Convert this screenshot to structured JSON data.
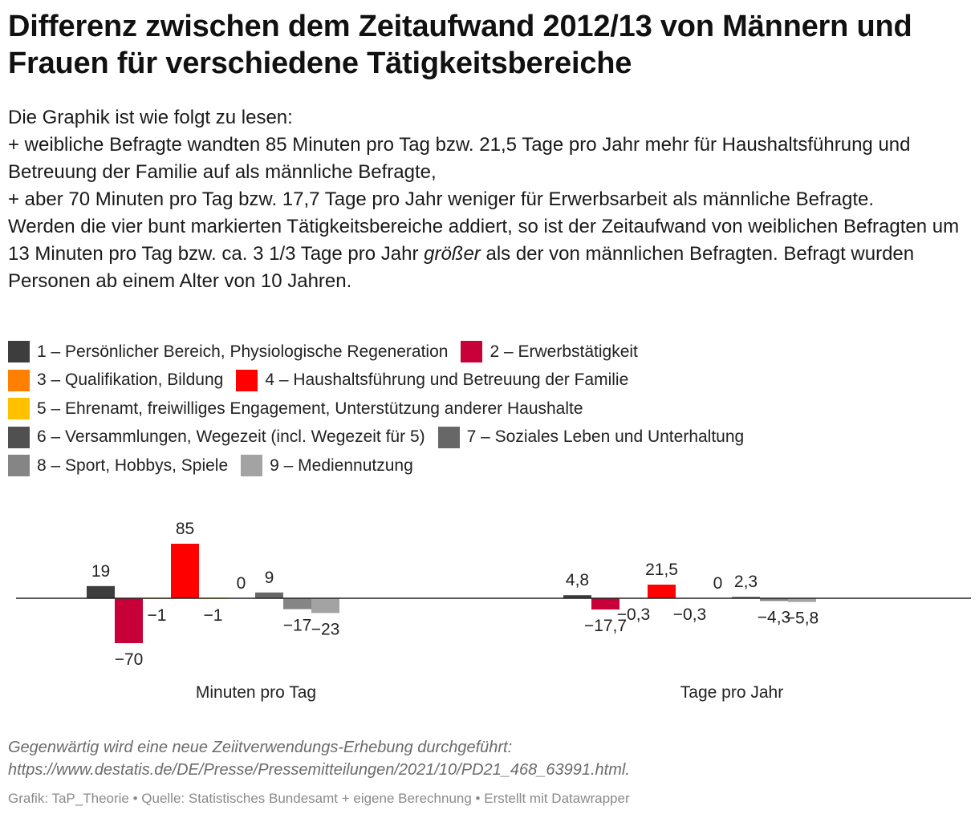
{
  "title": "Differenz zwischen dem Zeitaufwand 2012/13 von Männern und Frauen für verschiedene Tätigkeitsbereiche",
  "description": {
    "line1": "Die Graphik ist wie folgt zu lesen:",
    "line2": "+ weibliche Befragte wandten 85 Minuten pro Tag bzw. 21,5 Tage pro Jahr mehr für Haushaltsführung und Betreuung der Familie auf als männliche Befragte,",
    "line3": "+ aber 70 Minuten pro Tag bzw. 17,7 Tage pro Jahr weniger für Erwerbsarbeit als männliche Befragte.",
    "line4_before": "Werden die vier bunt markierten Tätigkeitsbereiche addiert, so ist der Zeitaufwand von weiblichen Befragten um 13 Minuten pro Tag bzw. ca. 3 1/3 Tage pro Jahr ",
    "line4_emph": "größer",
    "line4_after": " als der von männlichen Befragten. Befragt wurden Personen ab einem Alter von 10 Jahren."
  },
  "legend": [
    {
      "label": "1 – Persönlicher Bereich, Physiologische Regeneration",
      "color": "#3d3d3d"
    },
    {
      "label": "2 – Erwerbstätigkeit",
      "color": "#c70039"
    },
    {
      "label": "3 – Qualifikation, Bildung",
      "color": "#ff8000"
    },
    {
      "label": "4 – Haushaltsführung und Betreuung der Familie",
      "color": "#ff0000"
    },
    {
      "label": "5 – Ehrenamt, freiwilliges Engagement, Unterstützung anderer Haushalte",
      "color": "#ffc000"
    },
    {
      "label": "6 – Versammlungen, Wegezeit (incl. Wegezeit für 5)",
      "color": "#505050"
    },
    {
      "label": "7 – Soziales Leben und Unterhaltung",
      "color": "#676767"
    },
    {
      "label": "8 – Sport, Hobbys, Spiele",
      "color": "#858585"
    },
    {
      "label": "9 – Mediennutzung",
      "color": "#a3a3a3"
    }
  ],
  "chart_data": {
    "type": "bar",
    "title": "Differenz zwischen dem Zeitaufwand 2012/13 von Männern und Frauen für verschiedene Tätigkeitsbereiche",
    "categories": [
      "Minuten pro Tag",
      "Tage pro Jahr"
    ],
    "series": [
      {
        "name": "1 – Persönlicher Bereich, Physiologische Regeneration",
        "values": [
          19,
          4.8
        ],
        "labels": [
          "19",
          "4,8"
        ]
      },
      {
        "name": "2 – Erwerbstätigkeit",
        "values": [
          -70,
          -17.7
        ],
        "labels": [
          "−70",
          "−17,7"
        ]
      },
      {
        "name": "3 – Qualifikation, Bildung",
        "values": [
          -1,
          -0.3
        ],
        "labels": [
          "−1",
          "−0,3"
        ]
      },
      {
        "name": "4 – Haushaltsführung und Betreuung der Familie",
        "values": [
          85,
          21.5
        ],
        "labels": [
          "85",
          "21,5"
        ]
      },
      {
        "name": "5 – Ehrenamt, freiwilliges Engagement, Unterstützung anderer Haushalte",
        "values": [
          -1,
          -0.3
        ],
        "labels": [
          "−1",
          "−0,3"
        ]
      },
      {
        "name": "6 – Versammlungen, Wegezeit (incl. Wegezeit für 5)",
        "values": [
          0,
          0
        ],
        "labels": [
          "0",
          "0"
        ]
      },
      {
        "name": "7 – Soziales Leben und Unterhaltung",
        "values": [
          9,
          2.3
        ],
        "labels": [
          "9",
          "2,3"
        ]
      },
      {
        "name": "8 – Sport, Hobbys, Spiele",
        "values": [
          -17,
          -4.3
        ],
        "labels": [
          "−17",
          "−4,3"
        ]
      },
      {
        "name": "9 – Mediennutzung",
        "values": [
          -23,
          -5.8
        ],
        "labels": [
          "−23",
          "−5,8"
        ]
      }
    ],
    "xlabel": "",
    "ylabel": "",
    "grid": false,
    "legend_position": "top"
  },
  "footnote": {
    "line1": "Gegenwärtig wird eine neue Zeiitverwendungs-Erhebung durchgeführt:",
    "line2": "https://www.destatis.de/DE/Presse/Pressemitteilungen/2021/10/PD21_468_63991.html."
  },
  "credits": "Grafik: TaP_Theorie • Quelle: Statistisches Bundesamt + eigene Berechnung • Erstellt mit Datawrapper"
}
